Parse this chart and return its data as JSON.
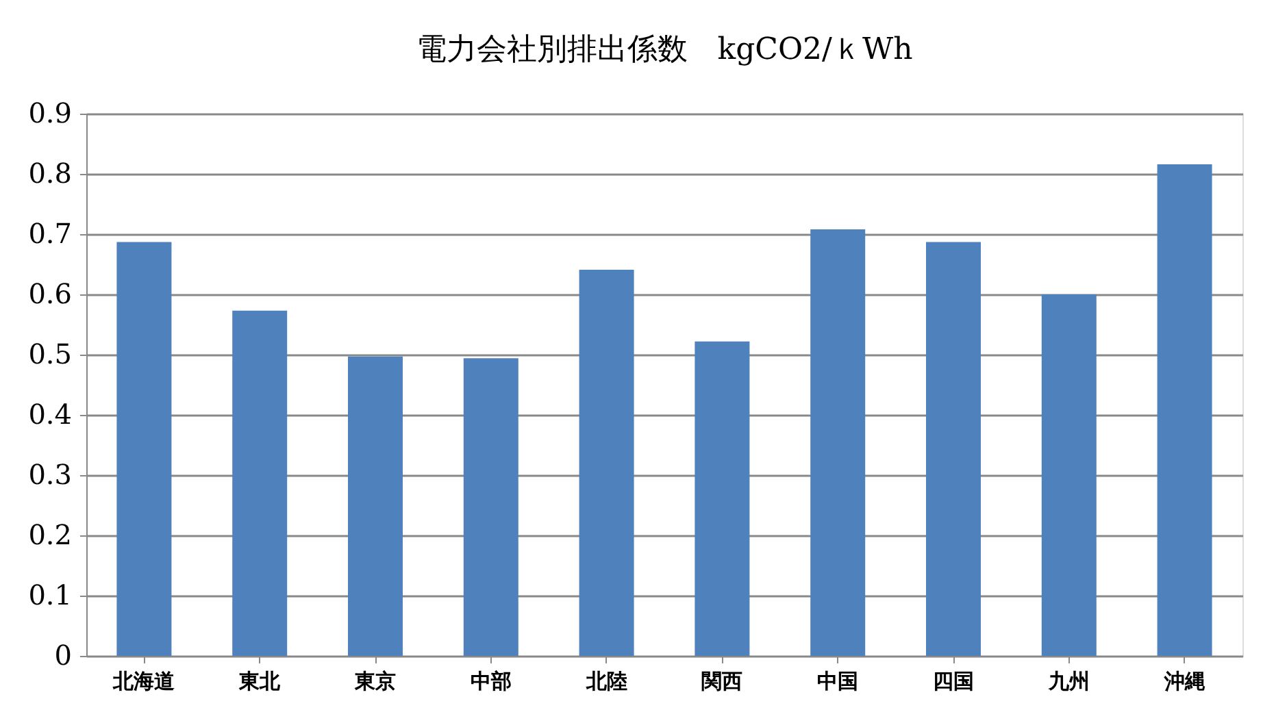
{
  "chart_data": {
    "type": "bar",
    "title": "電力会社別排出係数　kgCO2/ｋWh",
    "categories": [
      "北海道",
      "東北",
      "東京",
      "中部",
      "北陸",
      "関西",
      "中国",
      "四国",
      "九州",
      "沖縄"
    ],
    "series": [
      {
        "color": "#4f81bd",
        "values": [
          0.687,
          0.573,
          0.497,
          0.494,
          0.641,
          0.522,
          0.708,
          0.687,
          0.6,
          0.816
        ]
      }
    ],
    "ylim": [
      0,
      0.9
    ],
    "yticks": [
      0,
      0.1,
      0.2,
      0.3,
      0.4,
      0.5,
      0.6,
      0.7,
      0.8,
      0.9
    ],
    "grid": "y",
    "legend": false
  }
}
